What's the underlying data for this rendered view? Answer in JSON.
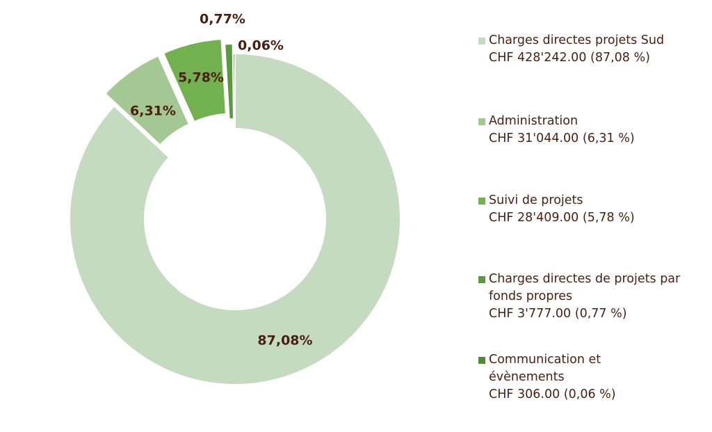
{
  "chart_data": {
    "type": "pie",
    "style": "donut",
    "slices": [
      {
        "name": "Charges directes projets Sud",
        "value": 428242.0,
        "percent_label": "87,08%",
        "legend_value": "CHF 428'242.00 (87,08 %)",
        "color": "#c4dbbf"
      },
      {
        "name": "Administration",
        "value": 31044.0,
        "percent_label": "6,31%",
        "legend_value": "CHF 31'044.00 (6,31 %)",
        "color": "#a4c894"
      },
      {
        "name": "Suivi de projets",
        "value": 28409.0,
        "percent_label": "5,78%",
        "legend_value": "CHF 28'409.00 (5,78 %)",
        "color": "#72b14f"
      },
      {
        "name": "Charges directes de projets par fonds propres",
        "value": 3777.0,
        "percent_label": "0,77%",
        "legend_value": "CHF 3'777.00 (0,77 %)",
        "color": "#5a9a3e"
      },
      {
        "name": "Communication et évènements",
        "value": 306.0,
        "percent_label": "0,06%",
        "legend_value": "CHF 306.00 (0,06 %)",
        "color": "#4f8a38"
      }
    ],
    "legend_position": "right"
  }
}
